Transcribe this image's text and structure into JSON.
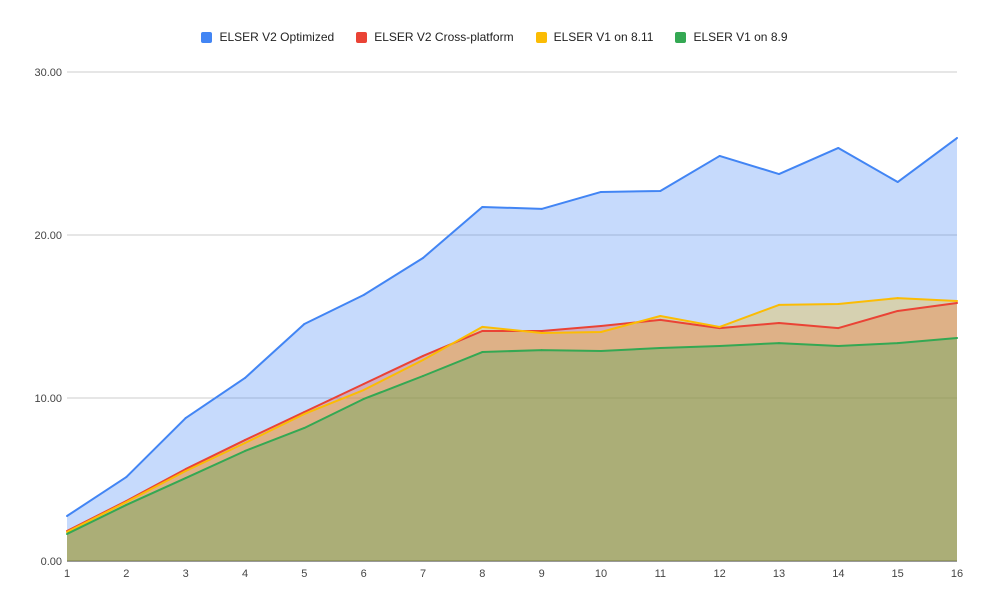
{
  "chart_data": {
    "type": "area",
    "title": "",
    "xlabel": "",
    "ylabel": "",
    "x": [
      1,
      2,
      3,
      4,
      5,
      6,
      7,
      8,
      9,
      10,
      11,
      12,
      13,
      14,
      15,
      16
    ],
    "ylim": [
      0,
      30
    ],
    "y_ticks": [
      "0.00",
      "10.00",
      "20.00",
      "30.00"
    ],
    "grid": true,
    "legend_position": "top",
    "series": [
      {
        "name": "ELSER V2 Optimized",
        "color": "#4285f4",
        "values": [
          2.76,
          5.15,
          8.77,
          11.23,
          14.54,
          16.32,
          18.59,
          21.72,
          21.6,
          22.64,
          22.7,
          24.85,
          23.74,
          25.34,
          23.25,
          25.95
        ]
      },
      {
        "name": "ELSER V2 Cross-platform",
        "color": "#ea4335",
        "values": [
          1.84,
          3.68,
          5.64,
          7.42,
          9.14,
          10.86,
          12.58,
          14.11,
          14.11,
          14.42,
          14.79,
          14.29,
          14.6,
          14.29,
          15.34,
          15.83
        ]
      },
      {
        "name": "ELSER V1 on 8.11",
        "color": "#fbbc04",
        "values": [
          1.78,
          3.62,
          5.52,
          7.24,
          9.02,
          10.49,
          12.33,
          14.36,
          13.99,
          14.05,
          15.03,
          14.36,
          15.71,
          15.77,
          16.13,
          15.95
        ]
      },
      {
        "name": "ELSER V1 on 8.9",
        "color": "#34a853",
        "values": [
          1.66,
          3.44,
          5.09,
          6.75,
          8.16,
          9.94,
          11.35,
          12.82,
          12.94,
          12.88,
          13.07,
          13.19,
          13.37,
          13.19,
          13.37,
          13.68
        ]
      }
    ]
  }
}
